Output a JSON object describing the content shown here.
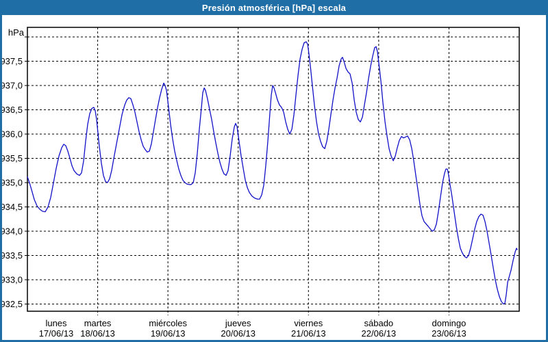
{
  "title": "Presión atmosférica [hPa] escala",
  "colors": {
    "frame": "#1f6ea6",
    "curve": "#1010c8",
    "grid": "#000000",
    "text": "#000000",
    "plot_background": "#ffffff"
  },
  "y_axis": {
    "unit": "hPa",
    "tick_labels": [
      {
        "value": 937.5,
        "label": "937,5"
      },
      {
        "value": 937.0,
        "label": "937,0"
      },
      {
        "value": 936.5,
        "label": "936,5"
      },
      {
        "value": 936.0,
        "label": "936,0"
      },
      {
        "value": 935.5,
        "label": "935,5"
      },
      {
        "value": 935.0,
        "label": "935,0"
      },
      {
        "value": 934.5,
        "label": "934,5"
      },
      {
        "value": 934.0,
        "label": "934,0"
      },
      {
        "value": 933.5,
        "label": "933,5"
      },
      {
        "value": 933.0,
        "label": "933,0"
      },
      {
        "value": 932.5,
        "label": "932,5"
      }
    ],
    "gridline_top_value": 938.0,
    "gridline_bottom_value": 932.5,
    "gridline_step": 0.5
  },
  "x_axis": {
    "days": [
      {
        "name": "lunes",
        "date": "17/06/13"
      },
      {
        "name": "martes",
        "date": "18/06/13"
      },
      {
        "name": "miércoles",
        "date": "19/06/13"
      },
      {
        "name": "jueves",
        "date": "20/06/13"
      },
      {
        "name": "viernes",
        "date": "21/06/13"
      },
      {
        "name": "sábado",
        "date": "22/06/13"
      },
      {
        "name": "domingo",
        "date": "23/06/13"
      }
    ]
  },
  "chart_data": {
    "type": "line",
    "title": "Presión atmosférica [hPa] escala",
    "ylabel": "hPa",
    "x_unit": "days since 17/06/13 00:00",
    "xlim": [
      0,
      7
    ],
    "ylim": [
      932.35,
      938.2
    ],
    "grid": true,
    "legend": false,
    "series": [
      {
        "name": "Presión atmosférica",
        "color": "#1010c8",
        "points": [
          [
            0.0,
            935.12
          ],
          [
            0.029,
            935.0
          ],
          [
            0.059,
            934.85
          ],
          [
            0.098,
            934.65
          ],
          [
            0.137,
            934.52
          ],
          [
            0.176,
            934.45
          ],
          [
            0.215,
            934.41
          ],
          [
            0.254,
            934.4
          ],
          [
            0.293,
            934.5
          ],
          [
            0.332,
            934.7
          ],
          [
            0.371,
            935.0
          ],
          [
            0.41,
            935.3
          ],
          [
            0.449,
            935.55
          ],
          [
            0.488,
            935.72
          ],
          [
            0.517,
            935.79
          ],
          [
            0.546,
            935.76
          ],
          [
            0.575,
            935.65
          ],
          [
            0.605,
            935.5
          ],
          [
            0.634,
            935.35
          ],
          [
            0.663,
            935.25
          ],
          [
            0.702,
            935.18
          ],
          [
            0.741,
            935.15
          ],
          [
            0.77,
            935.2
          ],
          [
            0.8,
            935.45
          ],
          [
            0.829,
            935.85
          ],
          [
            0.858,
            936.2
          ],
          [
            0.887,
            936.42
          ],
          [
            0.917,
            936.53
          ],
          [
            0.946,
            936.55
          ],
          [
            0.965,
            936.48
          ],
          [
            0.985,
            936.3
          ],
          [
            1.004,
            936.02
          ],
          [
            1.024,
            935.75
          ],
          [
            1.053,
            935.4
          ],
          [
            1.082,
            935.15
          ],
          [
            1.112,
            935.02
          ],
          [
            1.141,
            935.0
          ],
          [
            1.17,
            935.08
          ],
          [
            1.199,
            935.25
          ],
          [
            1.229,
            935.5
          ],
          [
            1.268,
            935.8
          ],
          [
            1.307,
            936.1
          ],
          [
            1.346,
            936.4
          ],
          [
            1.385,
            936.6
          ],
          [
            1.414,
            936.7
          ],
          [
            1.443,
            936.75
          ],
          [
            1.472,
            936.73
          ],
          [
            1.502,
            936.6
          ],
          [
            1.531,
            936.45
          ],
          [
            1.56,
            936.25
          ],
          [
            1.589,
            936.05
          ],
          [
            1.619,
            935.88
          ],
          [
            1.648,
            935.75
          ],
          [
            1.677,
            935.68
          ],
          [
            1.706,
            935.63
          ],
          [
            1.736,
            935.65
          ],
          [
            1.765,
            935.8
          ],
          [
            1.794,
            936.05
          ],
          [
            1.823,
            936.3
          ],
          [
            1.853,
            936.55
          ],
          [
            1.882,
            936.75
          ],
          [
            1.911,
            936.92
          ],
          [
            1.94,
            937.05
          ],
          [
            1.96,
            937.0
          ],
          [
            1.979,
            936.9
          ],
          [
            2.009,
            936.55
          ],
          [
            2.038,
            936.2
          ],
          [
            2.067,
            935.9
          ],
          [
            2.096,
            935.65
          ],
          [
            2.126,
            935.45
          ],
          [
            2.155,
            935.28
          ],
          [
            2.184,
            935.15
          ],
          [
            2.213,
            935.05
          ],
          [
            2.243,
            935.0
          ],
          [
            2.272,
            934.97
          ],
          [
            2.301,
            934.96
          ],
          [
            2.33,
            934.96
          ],
          [
            2.36,
            935.0
          ],
          [
            2.389,
            935.2
          ],
          [
            2.418,
            935.6
          ],
          [
            2.447,
            936.1
          ],
          [
            2.477,
            936.55
          ],
          [
            2.496,
            936.85
          ],
          [
            2.516,
            936.95
          ],
          [
            2.535,
            936.9
          ],
          [
            2.564,
            936.72
          ],
          [
            2.594,
            936.5
          ],
          [
            2.623,
            936.3
          ],
          [
            2.652,
            936.05
          ],
          [
            2.681,
            935.82
          ],
          [
            2.711,
            935.6
          ],
          [
            2.74,
            935.42
          ],
          [
            2.769,
            935.28
          ],
          [
            2.798,
            935.18
          ],
          [
            2.828,
            935.15
          ],
          [
            2.857,
            935.25
          ],
          [
            2.886,
            935.55
          ],
          [
            2.915,
            935.9
          ],
          [
            2.945,
            936.15
          ],
          [
            2.964,
            936.22
          ],
          [
            2.984,
            936.15
          ],
          [
            3.013,
            935.85
          ],
          [
            3.042,
            935.55
          ],
          [
            3.071,
            935.3
          ],
          [
            3.101,
            935.05
          ],
          [
            3.13,
            934.9
          ],
          [
            3.159,
            934.8
          ],
          [
            3.198,
            934.72
          ],
          [
            3.237,
            934.68
          ],
          [
            3.276,
            934.66
          ],
          [
            3.305,
            934.66
          ],
          [
            3.335,
            934.75
          ],
          [
            3.364,
            934.95
          ],
          [
            3.393,
            935.35
          ],
          [
            3.422,
            935.85
          ],
          [
            3.452,
            936.45
          ],
          [
            3.471,
            936.8
          ],
          [
            3.491,
            937.0
          ],
          [
            3.51,
            936.95
          ],
          [
            3.53,
            936.85
          ],
          [
            3.559,
            936.7
          ],
          [
            3.588,
            936.6
          ],
          [
            3.617,
            936.55
          ],
          [
            3.647,
            936.45
          ],
          [
            3.676,
            936.25
          ],
          [
            3.705,
            936.1
          ],
          [
            3.734,
            936.0
          ],
          [
            3.764,
            936.1
          ],
          [
            3.793,
            936.4
          ],
          [
            3.822,
            936.8
          ],
          [
            3.851,
            937.2
          ],
          [
            3.881,
            937.55
          ],
          [
            3.91,
            937.75
          ],
          [
            3.939,
            937.88
          ],
          [
            3.968,
            937.9
          ],
          [
            3.988,
            937.85
          ],
          [
            4.007,
            937.65
          ],
          [
            4.027,
            937.4
          ],
          [
            4.056,
            937.0
          ],
          [
            4.085,
            936.6
          ],
          [
            4.115,
            936.25
          ],
          [
            4.144,
            936.0
          ],
          [
            4.173,
            935.85
          ],
          [
            4.202,
            935.74
          ],
          [
            4.232,
            935.7
          ],
          [
            4.261,
            935.85
          ],
          [
            4.29,
            936.1
          ],
          [
            4.319,
            936.4
          ],
          [
            4.349,
            936.7
          ],
          [
            4.378,
            936.95
          ],
          [
            4.407,
            937.15
          ],
          [
            4.436,
            937.4
          ],
          [
            4.466,
            937.55
          ],
          [
            4.485,
            937.58
          ],
          [
            4.505,
            937.5
          ],
          [
            4.534,
            937.35
          ],
          [
            4.563,
            937.28
          ],
          [
            4.592,
            937.24
          ],
          [
            4.622,
            937.05
          ],
          [
            4.651,
            936.7
          ],
          [
            4.68,
            936.45
          ],
          [
            4.709,
            936.3
          ],
          [
            4.739,
            936.25
          ],
          [
            4.768,
            936.35
          ],
          [
            4.797,
            936.6
          ],
          [
            4.826,
            936.85
          ],
          [
            4.856,
            937.15
          ],
          [
            4.885,
            937.4
          ],
          [
            4.914,
            937.6
          ],
          [
            4.943,
            937.78
          ],
          [
            4.963,
            937.8
          ],
          [
            4.982,
            937.7
          ],
          [
            5.002,
            937.45
          ],
          [
            5.031,
            937.1
          ],
          [
            5.06,
            936.65
          ],
          [
            5.09,
            936.25
          ],
          [
            5.119,
            935.95
          ],
          [
            5.148,
            935.7
          ],
          [
            5.177,
            935.55
          ],
          [
            5.207,
            935.45
          ],
          [
            5.236,
            935.55
          ],
          [
            5.265,
            935.72
          ],
          [
            5.294,
            935.87
          ],
          [
            5.324,
            935.95
          ],
          [
            5.353,
            935.92
          ],
          [
            5.382,
            935.94
          ],
          [
            5.411,
            935.96
          ],
          [
            5.441,
            935.88
          ],
          [
            5.47,
            935.7
          ],
          [
            5.499,
            935.45
          ],
          [
            5.528,
            935.15
          ],
          [
            5.558,
            934.85
          ],
          [
            5.587,
            934.55
          ],
          [
            5.616,
            934.32
          ],
          [
            5.645,
            934.2
          ],
          [
            5.675,
            934.15
          ],
          [
            5.704,
            934.1
          ],
          [
            5.733,
            934.05
          ],
          [
            5.762,
            934.0
          ],
          [
            5.792,
            934.03
          ],
          [
            5.821,
            934.15
          ],
          [
            5.85,
            934.4
          ],
          [
            5.879,
            934.7
          ],
          [
            5.909,
            935.0
          ],
          [
            5.938,
            935.2
          ],
          [
            5.957,
            935.28
          ],
          [
            5.977,
            935.28
          ],
          [
            5.996,
            935.15
          ],
          [
            6.016,
            934.95
          ],
          [
            6.045,
            934.7
          ],
          [
            6.074,
            934.4
          ],
          [
            6.104,
            934.1
          ],
          [
            6.133,
            933.85
          ],
          [
            6.162,
            933.65
          ],
          [
            6.191,
            933.55
          ],
          [
            6.221,
            933.48
          ],
          [
            6.25,
            933.45
          ],
          [
            6.279,
            933.5
          ],
          [
            6.308,
            933.65
          ],
          [
            6.338,
            933.85
          ],
          [
            6.367,
            934.05
          ],
          [
            6.396,
            934.2
          ],
          [
            6.425,
            934.3
          ],
          [
            6.455,
            934.35
          ],
          [
            6.484,
            934.33
          ],
          [
            6.513,
            934.2
          ],
          [
            6.542,
            934.0
          ],
          [
            6.572,
            933.75
          ],
          [
            6.601,
            933.5
          ],
          [
            6.63,
            933.25
          ],
          [
            6.659,
            933.0
          ],
          [
            6.689,
            932.8
          ],
          [
            6.718,
            932.65
          ],
          [
            6.747,
            932.55
          ],
          [
            6.777,
            932.5
          ],
          [
            6.796,
            932.52
          ],
          [
            6.816,
            932.7
          ],
          [
            6.835,
            932.95
          ],
          [
            6.855,
            933.05
          ],
          [
            6.884,
            933.2
          ],
          [
            6.913,
            933.4
          ],
          [
            6.943,
            933.58
          ],
          [
            6.962,
            933.65
          ],
          [
            6.972,
            933.62
          ]
        ]
      }
    ]
  }
}
